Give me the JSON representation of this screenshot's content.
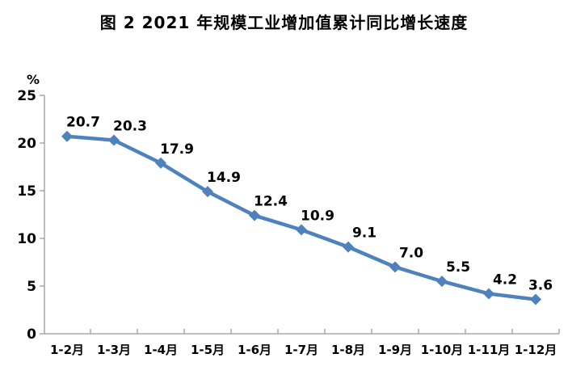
{
  "chart_data": {
    "type": "line",
    "title": "图 2  2021 年规模工业增加值累计同比增长速度",
    "unit_label": "%",
    "categories": [
      "1-2月",
      "1-3月",
      "1-4月",
      "1-5月",
      "1-6月",
      "1-7月",
      "1-8月",
      "1-9月",
      "1-10月",
      "1-11月",
      "1-12月"
    ],
    "values": [
      20.7,
      20.3,
      17.9,
      14.9,
      12.4,
      10.9,
      9.1,
      7.0,
      5.5,
      4.2,
      3.6
    ],
    "point_labels": [
      "20.7",
      "20.3",
      "17.9",
      "14.9",
      "12.4",
      "10.9",
      "9.1",
      "7.0",
      "5.5",
      "4.2",
      "3.6"
    ],
    "xlabel": "",
    "ylabel": "%",
    "ylim": [
      0,
      25
    ],
    "yticks": [
      0,
      5,
      10,
      15,
      20,
      25
    ],
    "grid": false,
    "legend": false,
    "line_color": "#4F81BD",
    "axis_color": "#999999",
    "label_color": "#000000"
  }
}
